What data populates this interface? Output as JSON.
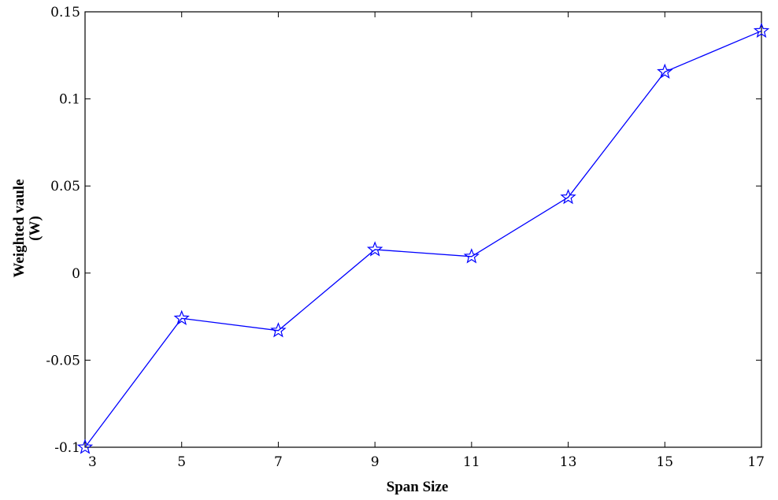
{
  "chart_data": {
    "type": "line",
    "title": "",
    "xlabel": "Span Size",
    "ylabel_lines": [
      "Weighted vaule",
      "(W)"
    ],
    "xlim": [
      3,
      17
    ],
    "ylim": [
      -0.1,
      0.15
    ],
    "x_ticks": [
      3,
      5,
      7,
      9,
      11,
      13,
      15,
      17
    ],
    "x_tick_labels": [
      "3",
      "5",
      "7",
      "9",
      "11",
      "13",
      "15",
      "17"
    ],
    "y_ticks": [
      -0.1,
      -0.05,
      0,
      0.05,
      0.1,
      0.15
    ],
    "y_tick_labels": [
      "-0.1",
      "-0.05",
      "0",
      "0.05",
      "0.1",
      "0.15"
    ],
    "grid": false,
    "legend": "none",
    "series": [
      {
        "marker": "star",
        "color": "#0000ff",
        "x": [
          3,
          5,
          7,
          9,
          11,
          13,
          15,
          17
        ],
        "y": [
          -0.1,
          -0.026,
          -0.033,
          0.0135,
          0.0095,
          0.0435,
          0.1155,
          0.139
        ]
      }
    ]
  }
}
